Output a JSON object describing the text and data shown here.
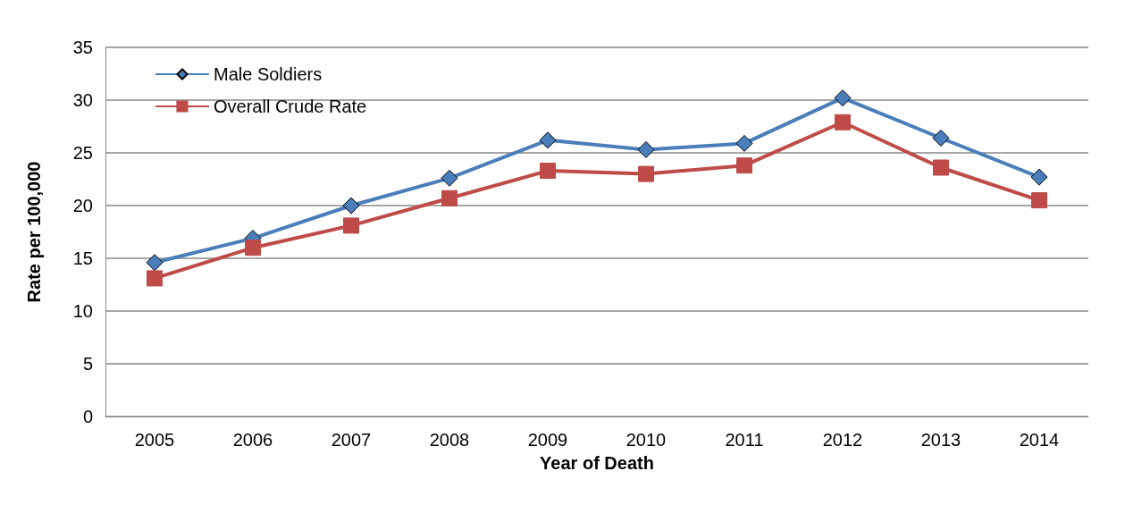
{
  "chart_data": {
    "type": "line",
    "xlabel": "Year of Death",
    "ylabel": "Rate per 100,000",
    "categories": [
      "2005",
      "2006",
      "2007",
      "2008",
      "2009",
      "2010",
      "2011",
      "2012",
      "2013",
      "2014"
    ],
    "series": [
      {
        "name": "Male Soldiers",
        "color": "#4a7ebb",
        "marker": "diamond",
        "values": [
          14.6,
          16.9,
          20.0,
          22.6,
          26.2,
          25.3,
          25.9,
          30.2,
          26.4,
          22.7
        ]
      },
      {
        "name": "Overall Crude Rate",
        "color": "#be4b48",
        "marker": "square",
        "values": [
          13.1,
          16.0,
          18.1,
          20.7,
          23.3,
          23.0,
          23.8,
          27.9,
          23.6,
          20.5
        ]
      }
    ],
    "ylim": [
      0,
      35
    ],
    "yticks": [
      0,
      5,
      10,
      15,
      20,
      25,
      30,
      35
    ],
    "grid": "y",
    "legend": "top left"
  }
}
